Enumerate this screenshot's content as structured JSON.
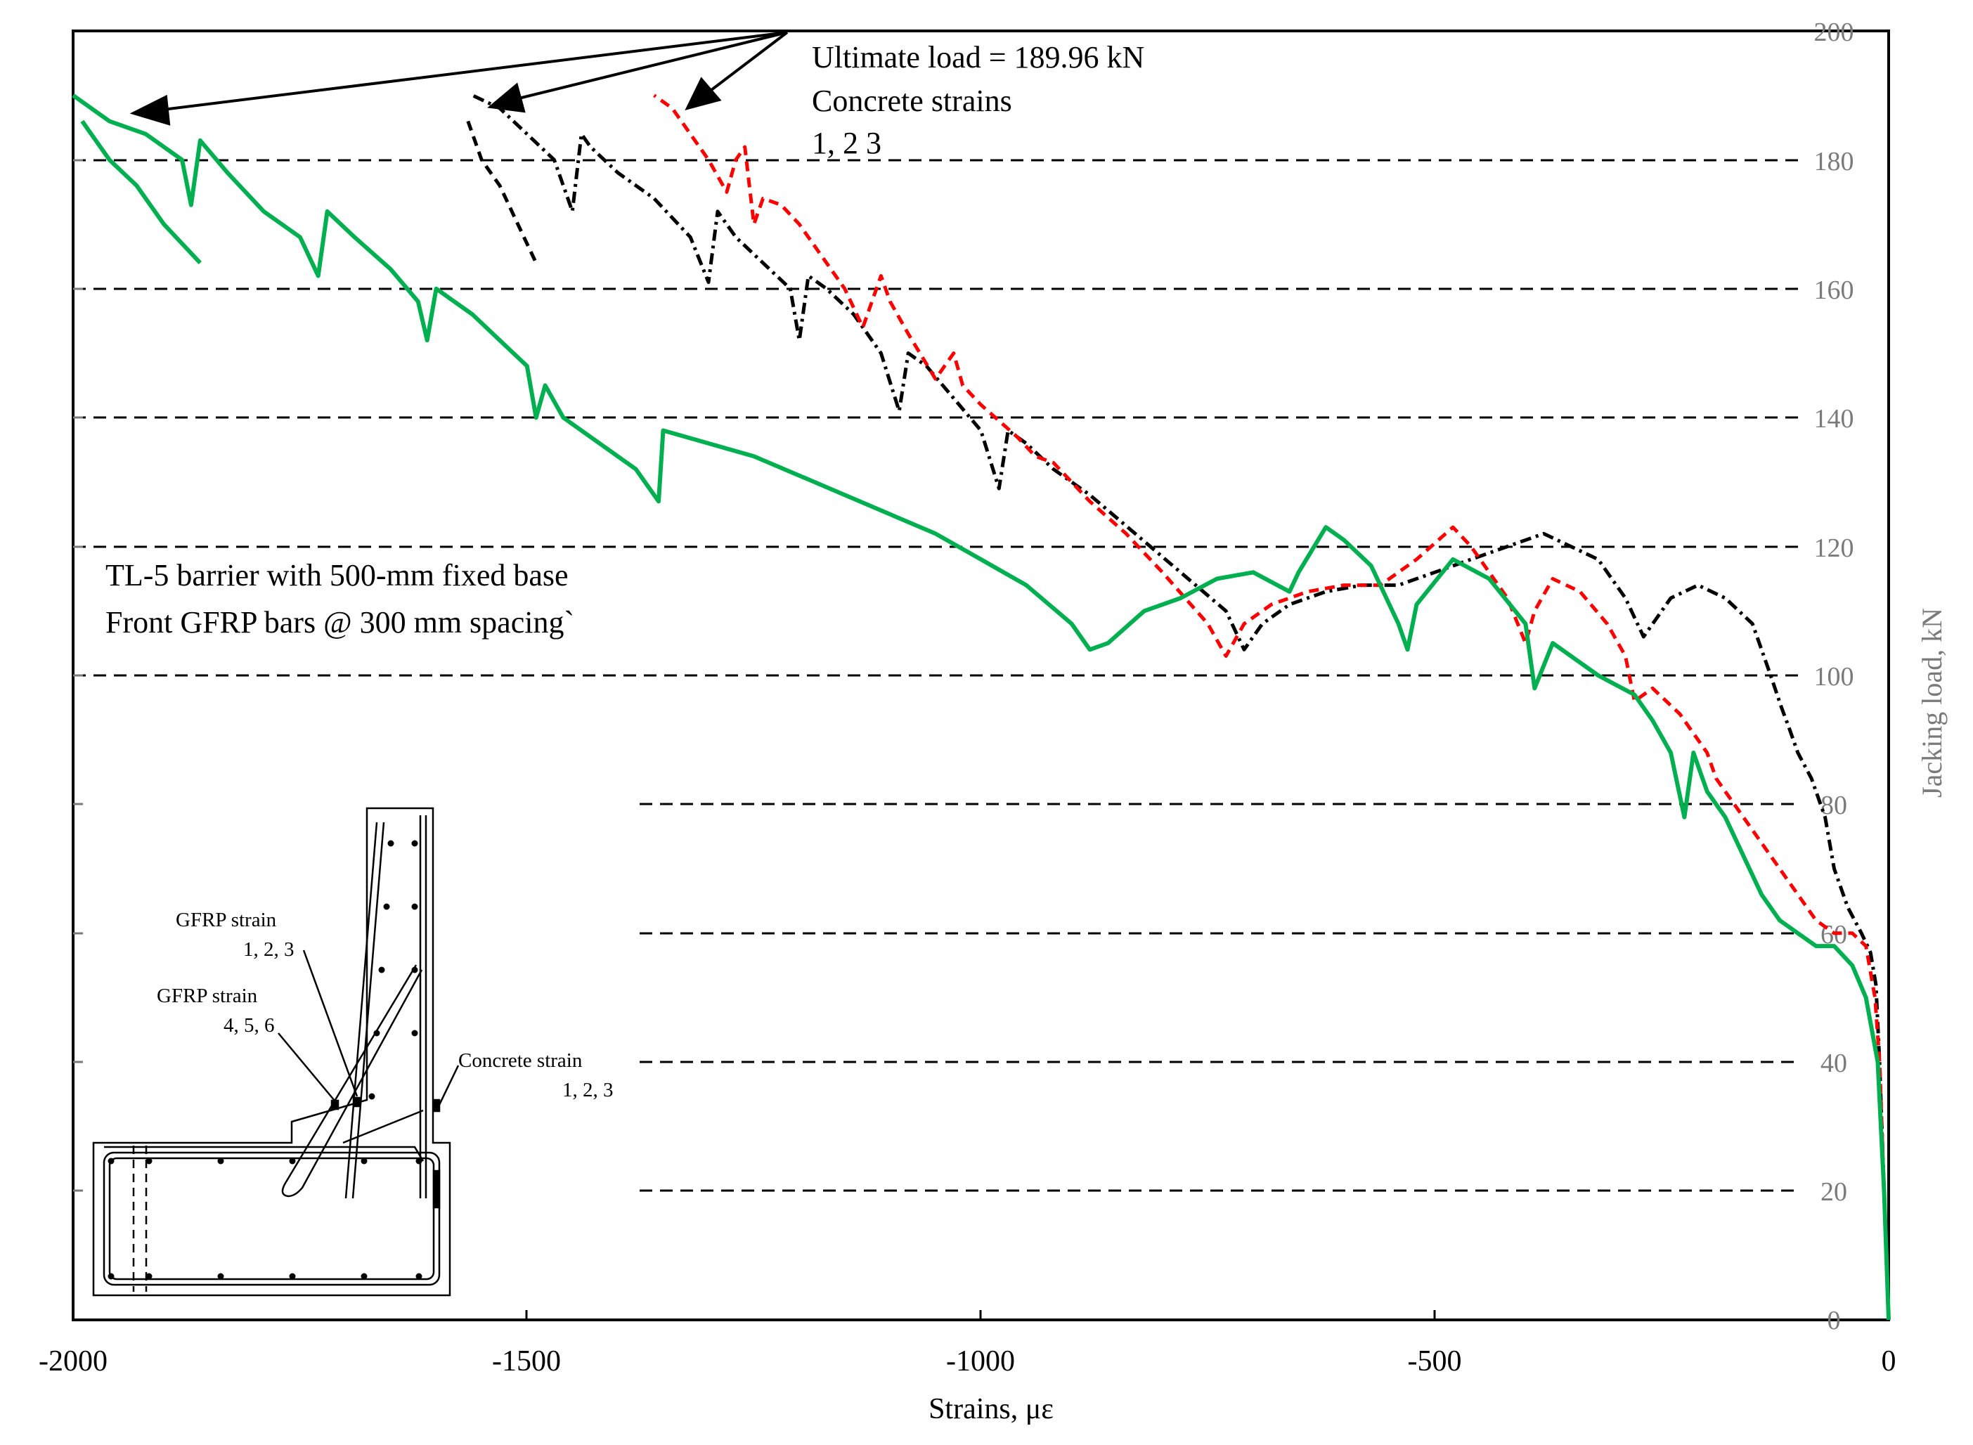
{
  "chart_data": {
    "type": "line",
    "xlabel": "Strains, με",
    "ylabel": "Jacking load, kN",
    "xlim": [
      -2000,
      0
    ],
    "ylim": [
      0,
      200
    ],
    "x_ticks": [
      "-2000",
      "-1500",
      "-1000",
      "-500",
      "0"
    ],
    "y_ticks": [
      "0",
      "20",
      "40",
      "60",
      "80",
      "100",
      "120",
      "140",
      "160",
      "180",
      "200"
    ],
    "grid": "dashed horizontal lines",
    "series_colors": [
      "#000000",
      "#ff0000",
      "#00b050"
    ],
    "series": [
      {
        "color": "#000000",
        "style": "dash-dot",
        "points": [
          [
            0,
            0
          ],
          [
            -5,
            20
          ],
          [
            -10,
            40
          ],
          [
            -14,
            52
          ],
          [
            -20,
            57
          ],
          [
            -30,
            60
          ],
          [
            -45,
            64
          ],
          [
            -60,
            70
          ],
          [
            -70,
            78
          ],
          [
            -85,
            84
          ],
          [
            -100,
            88
          ],
          [
            -110,
            92
          ],
          [
            -118,
            95
          ],
          [
            -130,
            100
          ],
          [
            -150,
            108
          ],
          [
            -180,
            112
          ],
          [
            -210,
            114
          ],
          [
            -240,
            112
          ],
          [
            -270,
            106
          ],
          [
            -290,
            112
          ],
          [
            -320,
            118
          ],
          [
            -350,
            120
          ],
          [
            -380,
            122
          ],
          [
            -420,
            120
          ],
          [
            -460,
            118
          ],
          [
            -500,
            116
          ],
          [
            -540,
            114
          ],
          [
            -580,
            114
          ],
          [
            -620,
            113
          ],
          [
            -660,
            111
          ],
          [
            -690,
            108
          ],
          [
            -710,
            104
          ],
          [
            -730,
            110
          ],
          [
            -780,
            116
          ],
          [
            -830,
            122
          ],
          [
            -880,
            128
          ],
          [
            -920,
            132
          ],
          [
            -950,
            136
          ],
          [
            -970,
            138
          ],
          [
            -980,
            129
          ],
          [
            -1000,
            138
          ],
          [
            -1030,
            143
          ],
          [
            -1060,
            148
          ],
          [
            -1080,
            150
          ],
          [
            -1090,
            141
          ],
          [
            -1110,
            150
          ],
          [
            -1140,
            156
          ],
          [
            -1170,
            160
          ],
          [
            -1190,
            162
          ],
          [
            -1200,
            152
          ],
          [
            -1210,
            160
          ],
          [
            -1240,
            164
          ],
          [
            -1270,
            168
          ],
          [
            -1290,
            172
          ],
          [
            -1300,
            161
          ],
          [
            -1320,
            168
          ],
          [
            -1360,
            174
          ],
          [
            -1400,
            178
          ],
          [
            -1430,
            182
          ],
          [
            -1440,
            184
          ],
          [
            -1450,
            172
          ],
          [
            -1470,
            180
          ],
          [
            -1500,
            184
          ],
          [
            -1530,
            188
          ],
          [
            -1560,
            190
          ]
        ]
      },
      {
        "color": "#000000",
        "style": "dashed",
        "points": [
          [
            -1565,
            186
          ],
          [
            -1550,
            180
          ],
          [
            -1530,
            176
          ],
          [
            -1510,
            170
          ],
          [
            -1490,
            164
          ]
        ]
      },
      {
        "color": "#ff0000",
        "style": "dashed",
        "points": [
          [
            0,
            0
          ],
          [
            -5,
            20
          ],
          [
            -10,
            40
          ],
          [
            -15,
            50
          ],
          [
            -25,
            58
          ],
          [
            -40,
            60
          ],
          [
            -60,
            60
          ],
          [
            -80,
            62
          ],
          [
            -100,
            66
          ],
          [
            -120,
            70
          ],
          [
            -150,
            76
          ],
          [
            -170,
            80
          ],
          [
            -190,
            84
          ],
          [
            -200,
            88
          ],
          [
            -210,
            90
          ],
          [
            -230,
            94
          ],
          [
            -260,
            98
          ],
          [
            -280,
            96
          ],
          [
            -290,
            103
          ],
          [
            -310,
            108
          ],
          [
            -340,
            113
          ],
          [
            -370,
            115
          ],
          [
            -390,
            110
          ],
          [
            -400,
            105
          ],
          [
            -420,
            112
          ],
          [
            -460,
            120
          ],
          [
            -480,
            123
          ],
          [
            -520,
            118
          ],
          [
            -560,
            114
          ],
          [
            -600,
            114
          ],
          [
            -640,
            113
          ],
          [
            -680,
            111
          ],
          [
            -710,
            108
          ],
          [
            -730,
            103
          ],
          [
            -750,
            108
          ],
          [
            -800,
            116
          ],
          [
            -840,
            122
          ],
          [
            -880,
            127
          ],
          [
            -920,
            133
          ],
          [
            -940,
            134
          ],
          [
            -960,
            137
          ],
          [
            -1000,
            142
          ],
          [
            -1020,
            145
          ],
          [
            -1030,
            150
          ],
          [
            -1050,
            146
          ],
          [
            -1080,
            153
          ],
          [
            -1100,
            158
          ],
          [
            -1110,
            162
          ],
          [
            -1130,
            154
          ],
          [
            -1150,
            160
          ],
          [
            -1180,
            166
          ],
          [
            -1200,
            170
          ],
          [
            -1220,
            173
          ],
          [
            -1240,
            174
          ],
          [
            -1250,
            170
          ],
          [
            -1260,
            182
          ],
          [
            -1270,
            180
          ],
          [
            -1280,
            175
          ],
          [
            -1300,
            180
          ],
          [
            -1320,
            184
          ],
          [
            -1340,
            188
          ],
          [
            -1360,
            190
          ]
        ]
      },
      {
        "color": "#00b050",
        "style": "solid",
        "points": [
          [
            0,
            0
          ],
          [
            -5,
            20
          ],
          [
            -12,
            40
          ],
          [
            -25,
            50
          ],
          [
            -40,
            55
          ],
          [
            -60,
            58
          ],
          [
            -80,
            58
          ],
          [
            -100,
            60
          ],
          [
            -120,
            62
          ],
          [
            -140,
            66
          ],
          [
            -160,
            72
          ],
          [
            -180,
            78
          ],
          [
            -200,
            82
          ],
          [
            -215,
            88
          ],
          [
            -225,
            78
          ],
          [
            -240,
            88
          ],
          [
            -260,
            93
          ],
          [
            -280,
            97
          ],
          [
            -320,
            100
          ],
          [
            -370,
            105
          ],
          [
            -390,
            98
          ],
          [
            -400,
            108
          ],
          [
            -440,
            115
          ],
          [
            -480,
            118
          ],
          [
            -520,
            111
          ],
          [
            -530,
            104
          ],
          [
            -540,
            108
          ],
          [
            -570,
            117
          ],
          [
            -600,
            121
          ],
          [
            -620,
            123
          ],
          [
            -650,
            116
          ],
          [
            -660,
            113
          ],
          [
            -700,
            116
          ],
          [
            -740,
            115
          ],
          [
            -780,
            112
          ],
          [
            -820,
            110
          ],
          [
            -860,
            105
          ],
          [
            -880,
            104
          ],
          [
            -900,
            108
          ],
          [
            -950,
            114
          ],
          [
            -1000,
            118
          ],
          [
            -1050,
            122
          ],
          [
            -1100,
            125
          ],
          [
            -1150,
            128
          ],
          [
            -1200,
            131
          ],
          [
            -1250,
            134
          ],
          [
            -1300,
            136
          ],
          [
            -1350,
            138
          ],
          [
            -1355,
            127
          ],
          [
            -1380,
            132
          ],
          [
            -1420,
            136
          ],
          [
            -1460,
            140
          ],
          [
            -1480,
            145
          ],
          [
            -1490,
            140
          ],
          [
            -1500,
            148
          ],
          [
            -1530,
            152
          ],
          [
            -1560,
            156
          ],
          [
            -1600,
            160
          ],
          [
            -1610,
            152
          ],
          [
            -1620,
            158
          ],
          [
            -1650,
            163
          ],
          [
            -1690,
            168
          ],
          [
            -1720,
            172
          ],
          [
            -1730,
            162
          ],
          [
            -1750,
            168
          ],
          [
            -1790,
            172
          ],
          [
            -1830,
            178
          ],
          [
            -1860,
            183
          ],
          [
            -1870,
            173
          ],
          [
            -1880,
            180
          ],
          [
            -1920,
            184
          ],
          [
            -1960,
            186
          ],
          [
            -2000,
            190
          ]
        ]
      },
      {
        "color": "#00b050",
        "style": "solid",
        "points": [
          [
            -1990,
            186
          ],
          [
            -1960,
            180
          ],
          [
            -1930,
            176
          ],
          [
            -1900,
            170
          ],
          [
            -1860,
            164
          ]
        ]
      }
    ],
    "annotations": {
      "ultimate_load": "Ultimate load = 189.96 kN",
      "concrete_strains": "Concrete strains",
      "concrete_strains_ids": "1, 2  3",
      "barrier_line1": "TL-5 barrier with 500-mm fixed base",
      "barrier_line2": "Front GFRP bars @ 300 mm spacing`"
    },
    "inset": {
      "gfrp_strain_a": "GFRP strain",
      "gfrp_strain_a_ids": "1, 2, 3",
      "gfrp_strain_b": "GFRP strain",
      "gfrp_strain_b_ids": "4, 5, 6",
      "concrete_strain": "Concrete  strain",
      "concrete_strain_ids": "1, 2, 3"
    }
  }
}
